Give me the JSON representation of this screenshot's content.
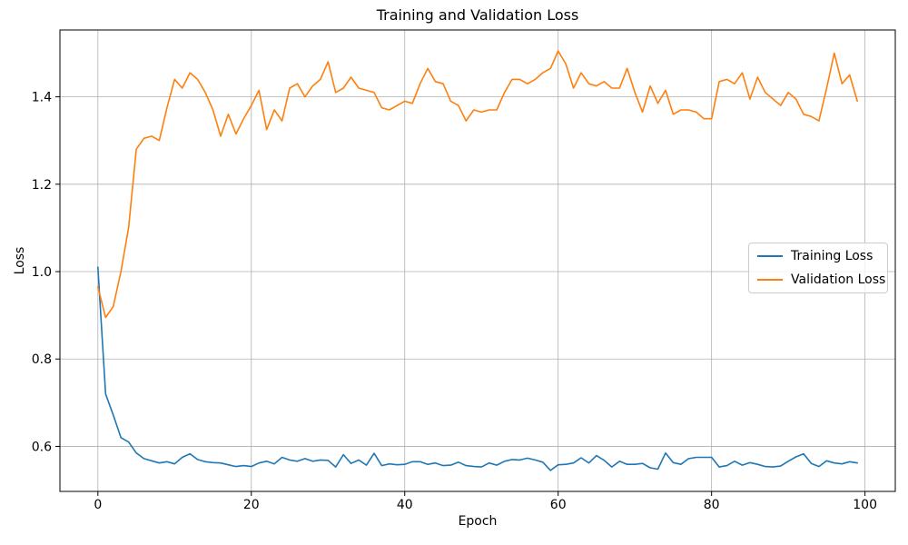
{
  "chart_data": {
    "type": "line",
    "title": "Training and Validation Loss",
    "xlabel": "Epoch",
    "ylabel": "Loss",
    "grid": true,
    "legend_position": "center right",
    "xlim": [
      -4.95,
      103.95
    ],
    "ylim": [
      0.497,
      1.553
    ],
    "xticks": [
      0,
      20,
      40,
      60,
      80,
      100
    ],
    "xtick_labels": [
      "0",
      "20",
      "40",
      "60",
      "80",
      "100"
    ],
    "yticks": [
      0.6,
      0.8,
      1.0,
      1.2,
      1.4
    ],
    "ytick_labels": [
      "0.6",
      "0.8",
      "1.0",
      "1.2",
      "1.4"
    ],
    "colors": {
      "grid": "#b0b0b0",
      "axis": "#000000",
      "background": "#ffffff"
    },
    "x": [
      0,
      1,
      2,
      3,
      4,
      5,
      6,
      7,
      8,
      9,
      10,
      11,
      12,
      13,
      14,
      15,
      16,
      17,
      18,
      19,
      20,
      21,
      22,
      23,
      24,
      25,
      26,
      27,
      28,
      29,
      30,
      31,
      32,
      33,
      34,
      35,
      36,
      37,
      38,
      39,
      40,
      41,
      42,
      43,
      44,
      45,
      46,
      47,
      48,
      49,
      50,
      51,
      52,
      53,
      54,
      55,
      56,
      57,
      58,
      59,
      60,
      61,
      62,
      63,
      64,
      65,
      66,
      67,
      68,
      69,
      70,
      71,
      72,
      73,
      74,
      75,
      76,
      77,
      78,
      79,
      80,
      81,
      82,
      83,
      84,
      85,
      86,
      87,
      88,
      89,
      90,
      91,
      92,
      93,
      94,
      95,
      96,
      97,
      98,
      99
    ],
    "series": [
      {
        "name": "Training Loss",
        "color": "#1f77b4",
        "values": [
          1.01,
          0.72,
          0.672,
          0.62,
          0.61,
          0.585,
          0.572,
          0.567,
          0.562,
          0.565,
          0.56,
          0.575,
          0.583,
          0.57,
          0.565,
          0.563,
          0.562,
          0.558,
          0.554,
          0.556,
          0.554,
          0.562,
          0.566,
          0.56,
          0.575,
          0.569,
          0.566,
          0.572,
          0.566,
          0.569,
          0.568,
          0.553,
          0.581,
          0.561,
          0.569,
          0.557,
          0.584,
          0.556,
          0.56,
          0.558,
          0.559,
          0.565,
          0.565,
          0.559,
          0.562,
          0.556,
          0.557,
          0.564,
          0.556,
          0.554,
          0.553,
          0.562,
          0.557,
          0.566,
          0.57,
          0.569,
          0.573,
          0.569,
          0.564,
          0.545,
          0.558,
          0.559,
          0.562,
          0.574,
          0.562,
          0.579,
          0.568,
          0.553,
          0.566,
          0.559,
          0.559,
          0.561,
          0.551,
          0.548,
          0.585,
          0.563,
          0.559,
          0.572,
          0.575,
          0.575,
          0.575,
          0.553,
          0.556,
          0.566,
          0.557,
          0.563,
          0.559,
          0.554,
          0.553,
          0.555,
          0.566,
          0.576,
          0.583,
          0.561,
          0.554,
          0.567,
          0.562,
          0.56,
          0.565,
          0.562
        ]
      },
      {
        "name": "Validation Loss",
        "color": "#ff7f0e",
        "values": [
          0.965,
          0.895,
          0.92,
          1.0,
          1.1,
          1.28,
          1.305,
          1.31,
          1.3,
          1.375,
          1.44,
          1.42,
          1.455,
          1.44,
          1.41,
          1.37,
          1.31,
          1.36,
          1.315,
          1.35,
          1.38,
          1.415,
          1.325,
          1.37,
          1.345,
          1.42,
          1.43,
          1.4,
          1.425,
          1.44,
          1.48,
          1.41,
          1.42,
          1.445,
          1.42,
          1.415,
          1.41,
          1.375,
          1.37,
          1.38,
          1.39,
          1.385,
          1.43,
          1.465,
          1.435,
          1.43,
          1.39,
          1.38,
          1.345,
          1.37,
          1.365,
          1.37,
          1.37,
          1.41,
          1.44,
          1.44,
          1.43,
          1.44,
          1.455,
          1.465,
          1.505,
          1.475,
          1.42,
          1.455,
          1.43,
          1.425,
          1.435,
          1.42,
          1.42,
          1.465,
          1.41,
          1.365,
          1.425,
          1.385,
          1.415,
          1.36,
          1.37,
          1.37,
          1.365,
          1.35,
          1.35,
          1.435,
          1.44,
          1.43,
          1.455,
          1.395,
          1.445,
          1.41,
          1.395,
          1.38,
          1.41,
          1.395,
          1.36,
          1.355,
          1.345,
          1.42,
          1.5,
          1.43,
          1.45,
          1.39
        ]
      }
    ]
  }
}
